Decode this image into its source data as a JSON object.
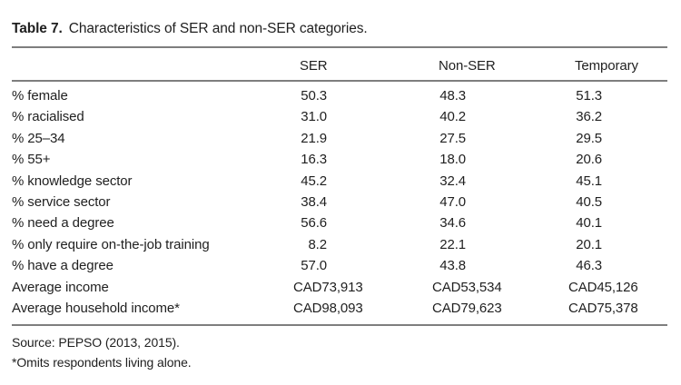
{
  "caption": {
    "number": "Table 7.",
    "text": "Characteristics of SER and non-SER categories."
  },
  "table": {
    "columns": [
      "",
      "SER",
      "Non-SER",
      "Temporary"
    ],
    "rows": [
      {
        "label": "% female",
        "format": "decimal",
        "values": [
          "50.3",
          "48.3",
          "51.3"
        ]
      },
      {
        "label": "% racialised",
        "format": "decimal",
        "values": [
          "31.0",
          "40.2",
          "36.2"
        ]
      },
      {
        "label": "% 25–34",
        "format": "decimal",
        "values": [
          "21.9",
          "27.5",
          "29.5"
        ]
      },
      {
        "label": "% 55+",
        "format": "decimal",
        "values": [
          "16.3",
          "18.0",
          "20.6"
        ]
      },
      {
        "label": "% knowledge sector",
        "format": "decimal",
        "values": [
          "45.2",
          "32.4",
          "45.1"
        ]
      },
      {
        "label": "% service sector",
        "format": "decimal",
        "values": [
          "38.4",
          "47.0",
          "40.5"
        ]
      },
      {
        "label": "% need a degree",
        "format": "decimal",
        "values": [
          "56.6",
          "34.6",
          "40.1"
        ]
      },
      {
        "label": "% only require on-the-job training",
        "format": "decimal",
        "values": [
          "8.2",
          "22.1",
          "20.1"
        ]
      },
      {
        "label": "% have a degree",
        "format": "decimal",
        "values": [
          "57.0",
          "43.8",
          "46.3"
        ]
      },
      {
        "label": "Average income",
        "format": "currency",
        "values": [
          "CAD73,913",
          "CAD53,534",
          "CAD45,126"
        ]
      },
      {
        "label": "Average household income*",
        "format": "currency",
        "values": [
          "CAD98,093",
          "CAD79,623",
          "CAD75,378"
        ]
      }
    ]
  },
  "footnotes": [
    "Source: PEPSO (2013, 2015).",
    "*Omits respondents living alone."
  ],
  "colors": {
    "text": "#1f1f1f",
    "rule": "#7e7e7e",
    "background": "#ffffff"
  }
}
